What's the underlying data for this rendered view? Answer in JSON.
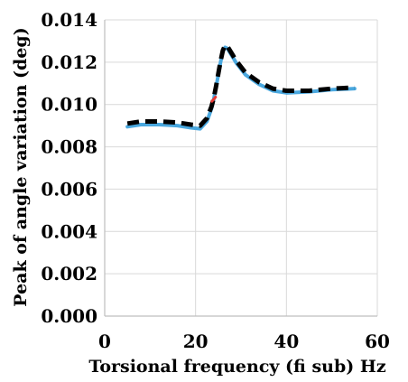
{
  "chart_data": {
    "type": "line",
    "title": "",
    "xlabel": "Torsional frequency (fi sub) Hz",
    "ylabel": "Peak of angle variation (deg)",
    "xlim": [
      0,
      60
    ],
    "ylim": [
      0,
      0.014
    ],
    "grid": true,
    "legend": "none",
    "x_ticks": [
      "0",
      "20",
      "40",
      "60"
    ],
    "y_ticks": [
      "0.000",
      "0.002",
      "0.004",
      "0.006",
      "0.008",
      "0.010",
      "0.012",
      "0.014"
    ],
    "series": [
      {
        "color": "#4aa8df",
        "style": "solid",
        "x": [
          5,
          8,
          12,
          16,
          19,
          21,
          22.5,
          23.5,
          24,
          24.5,
          25,
          25.5,
          26,
          26.5,
          27,
          28,
          29,
          31,
          34,
          37,
          40,
          45,
          50,
          55
        ],
        "y": [
          0.00895,
          0.00905,
          0.00905,
          0.009,
          0.0089,
          0.00885,
          0.0092,
          0.0098,
          0.01025,
          0.0108,
          0.0114,
          0.012,
          0.0125,
          0.0127,
          0.01265,
          0.0123,
          0.01195,
          0.0114,
          0.01095,
          0.01065,
          0.01055,
          0.0106,
          0.0107,
          0.01075
        ]
      },
      {
        "color": "#000000",
        "style": "dashed",
        "x": [
          5,
          8,
          12,
          16,
          19,
          21,
          22.5,
          23.5,
          24,
          24.5,
          25,
          25.5,
          26,
          26.5,
          27,
          28,
          29,
          31,
          34,
          37,
          40,
          45,
          50,
          55
        ],
        "y": [
          0.0091,
          0.0092,
          0.0092,
          0.00915,
          0.00905,
          0.009,
          0.00935,
          0.0099,
          0.0103,
          0.01085,
          0.01145,
          0.01205,
          0.01255,
          0.0128,
          0.01275,
          0.0124,
          0.01205,
          0.0115,
          0.01105,
          0.01075,
          0.01065,
          0.01065,
          0.01075,
          0.0108
        ]
      },
      {
        "color": "#e53935",
        "style": "solid",
        "x": [
          23.6,
          24.0,
          24.4
        ],
        "y": [
          0.01015,
          0.01025,
          0.01035
        ]
      }
    ]
  }
}
